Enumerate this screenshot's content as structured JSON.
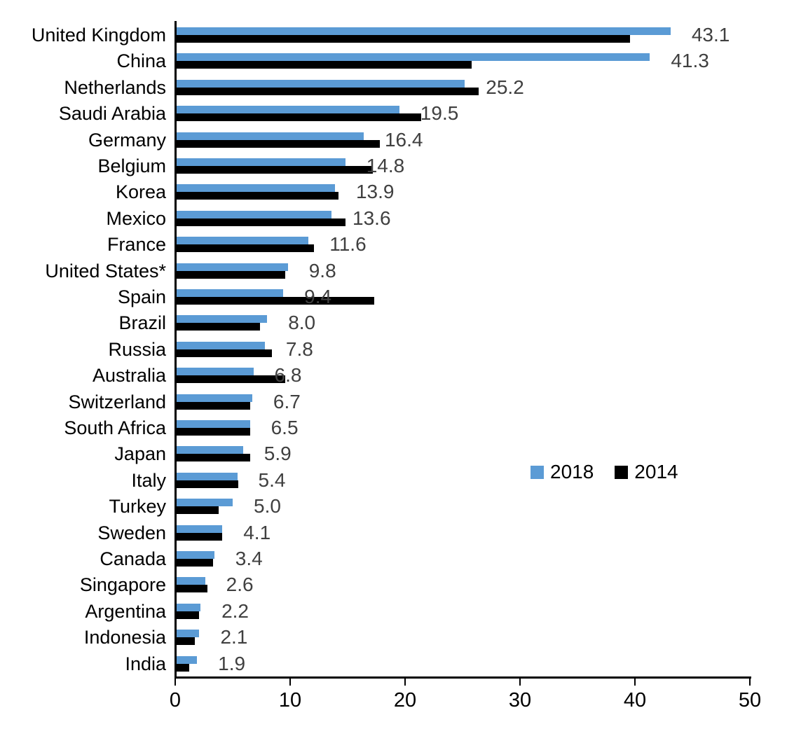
{
  "chart_data": {
    "type": "bar",
    "orientation": "horizontal",
    "title": "",
    "xlabel": "",
    "ylabel": "",
    "xlim": [
      0,
      50
    ],
    "xticks": [
      0,
      10,
      20,
      30,
      40,
      50
    ],
    "grid": false,
    "legend_position": "middle-right",
    "categories": [
      "United Kingdom",
      "China",
      "Netherlands",
      "Saudi Arabia",
      "Germany",
      "Belgium",
      "Korea",
      "Mexico",
      "France",
      "United States*",
      "Spain",
      "Brazil",
      "Russia",
      "Australia",
      "Switzerland",
      "South Africa",
      "Japan",
      "Italy",
      "Turkey",
      "Sweden",
      "Canada",
      "Singapore",
      "Argentina",
      "Indonesia",
      "India"
    ],
    "series": [
      {
        "name": "2018",
        "color": "#5B9BD5",
        "values": [
          43.1,
          41.3,
          25.2,
          19.5,
          16.4,
          14.8,
          13.9,
          13.6,
          11.6,
          9.8,
          9.4,
          8.0,
          7.8,
          6.8,
          6.7,
          6.5,
          5.9,
          5.4,
          5.0,
          4.1,
          3.4,
          2.6,
          2.2,
          2.1,
          1.9
        ]
      },
      {
        "name": "2014",
        "color": "#000000",
        "values": [
          39.6,
          25.8,
          26.4,
          21.4,
          17.8,
          17.2,
          14.2,
          14.8,
          12.1,
          9.6,
          17.3,
          7.4,
          8.4,
          9.6,
          6.5,
          6.5,
          6.5,
          5.5,
          3.8,
          4.1,
          3.3,
          2.8,
          2.1,
          1.7,
          1.2
        ]
      }
    ],
    "data_labels": [
      "43.1",
      "41.3",
      "25.2",
      "19.5",
      "16.4",
      "14.8",
      "13.9",
      "13.6",
      "11.6",
      "9.8",
      "9.4",
      "8.0",
      "7.8",
      "6.8",
      "6.7",
      "6.5",
      "5.9",
      "5.4",
      "5.0",
      "4.1",
      "3.4",
      "2.6",
      "2.2",
      "2.1",
      "1.9"
    ],
    "data_label_color": "#404040",
    "axis_color": "#000000"
  },
  "legend": {
    "items": [
      {
        "label": "2018",
        "color": "#5B9BD5"
      },
      {
        "label": "2014",
        "color": "#000000"
      }
    ]
  }
}
